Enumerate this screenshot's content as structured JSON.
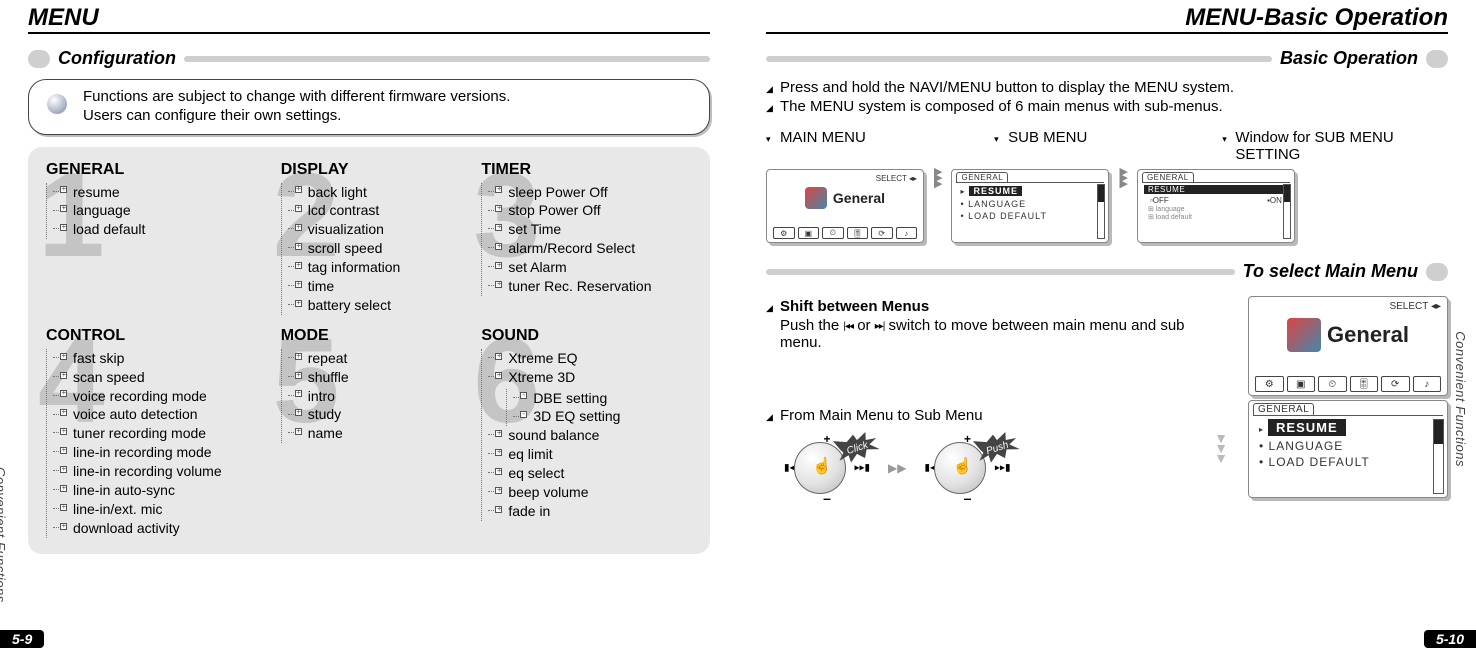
{
  "left": {
    "title": "MENU",
    "page_number": "5-9",
    "side_label": "Convenient Functions",
    "section_header": "Configuration",
    "note": [
      "Functions are subject to change with different firmware versions.",
      "Users can configure their own settings."
    ],
    "columns": [
      {
        "num": "1",
        "title": "GENERAL",
        "items": [
          "resume",
          "language",
          "load default"
        ]
      },
      {
        "num": "2",
        "title": "DISPLAY",
        "items": [
          "back light",
          "lcd contrast",
          "visualization",
          "scroll speed",
          "tag information",
          "time",
          "battery select"
        ]
      },
      {
        "num": "3",
        "title": "TIMER",
        "items": [
          "sleep Power Off",
          "stop Power Off",
          "set Time",
          "alarm/Record Select",
          "set Alarm",
          "tuner Rec. Reservation"
        ]
      },
      {
        "num": "4",
        "title": "CONTROL",
        "items": [
          "fast skip",
          "scan speed",
          "voice recording mode",
          "voice auto detection",
          "tuner recording mode",
          "line-in recording mode",
          "line-in recording volume",
          "line-in auto-sync",
          "line-in/ext. mic",
          "download activity"
        ]
      },
      {
        "num": "5",
        "title": "MODE",
        "items": [
          "repeat",
          "shuffle",
          "intro",
          "study",
          "name"
        ]
      },
      {
        "num": "6",
        "title": "SOUND",
        "items": [
          "Xtreme EQ",
          "Xtreme 3D",
          "sound balance",
          "eq limit",
          "eq select",
          "beep volume",
          "fade in"
        ],
        "nested_at": 1,
        "nested": [
          "DBE setting",
          "3D EQ setting"
        ]
      }
    ]
  },
  "right": {
    "title": "MENU-Basic Operation",
    "page_number": "5-10",
    "side_label": "Convenient Functions",
    "section_headers": [
      "Basic Operation",
      "To select Main Menu"
    ],
    "intro_lines": [
      "Press and hold the NAVI/MENU button to display the MENU system.",
      "The MENU system is composed of 6 main menus with sub-menus."
    ],
    "screen_labels": [
      "MAIN MENU",
      "SUB MENU",
      "Window for SUB MENU SETTING"
    ],
    "main_screen": {
      "select_label": "SELECT",
      "text": "General",
      "tabs": [
        "⚙",
        "▣",
        "⏲",
        "🎚",
        "⟳",
        "♪"
      ]
    },
    "sub_screen": {
      "tab": "GENERAL",
      "selected": "RESUME",
      "other": [
        "LANGUAGE",
        "LOAD DEFAULT"
      ]
    },
    "win_screen": {
      "tab": "GENERAL",
      "bar": "RESUME",
      "left_opt": "▫OFF",
      "right_opt": "▪ON",
      "below": [
        "language",
        "load default"
      ]
    },
    "shift": {
      "title": "Shift between Menus",
      "body_prefix": "Push the ",
      "key1": "|◂◂",
      "mid": " or  ",
      "key2": "▸▸|",
      "body_suffix": " switch to move between main menu and sub menu."
    },
    "from_title": "From Main Menu to Sub Menu",
    "burst_click": "Click",
    "burst_push": "Push"
  }
}
